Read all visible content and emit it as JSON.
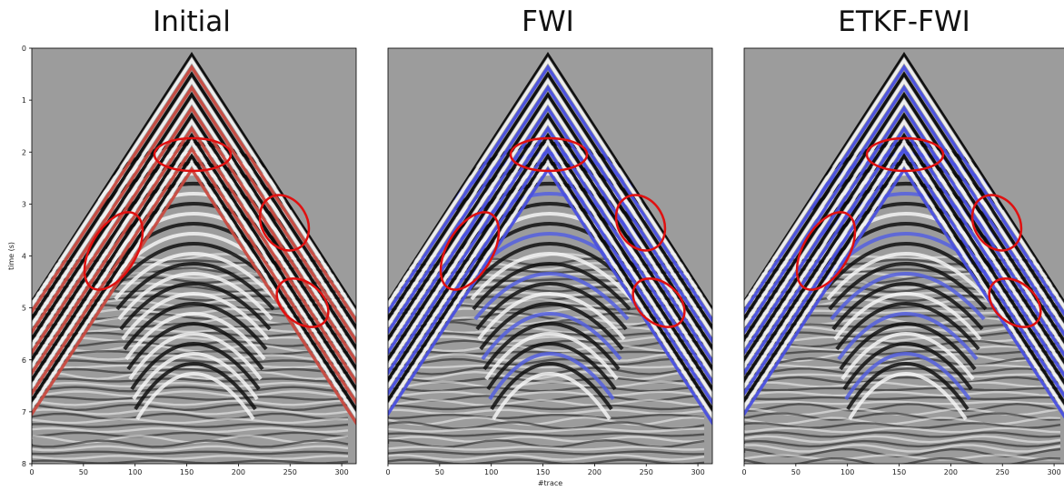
{
  "chart_data": [
    {
      "type": "image",
      "title": "Initial",
      "ylabel": "time (s)",
      "xlim": [
        0,
        314
      ],
      "xticks": [
        0,
        50,
        100,
        150,
        200,
        250,
        300
      ],
      "ylim": [
        8,
        0
      ],
      "yticks": [
        0,
        1,
        2,
        3,
        4,
        5,
        6,
        7,
        8
      ]
    },
    {
      "type": "image",
      "title": "FWI",
      "xlabel": "#trace",
      "xlim": [
        0,
        314
      ],
      "xticks": [
        0,
        50,
        100,
        150,
        200,
        250,
        300
      ]
    },
    {
      "type": "image",
      "title": "ETKF-FWI",
      "xlim": [
        0,
        314
      ],
      "xticks": [
        0,
        50,
        100,
        150,
        200,
        250,
        300
      ]
    }
  ]
}
